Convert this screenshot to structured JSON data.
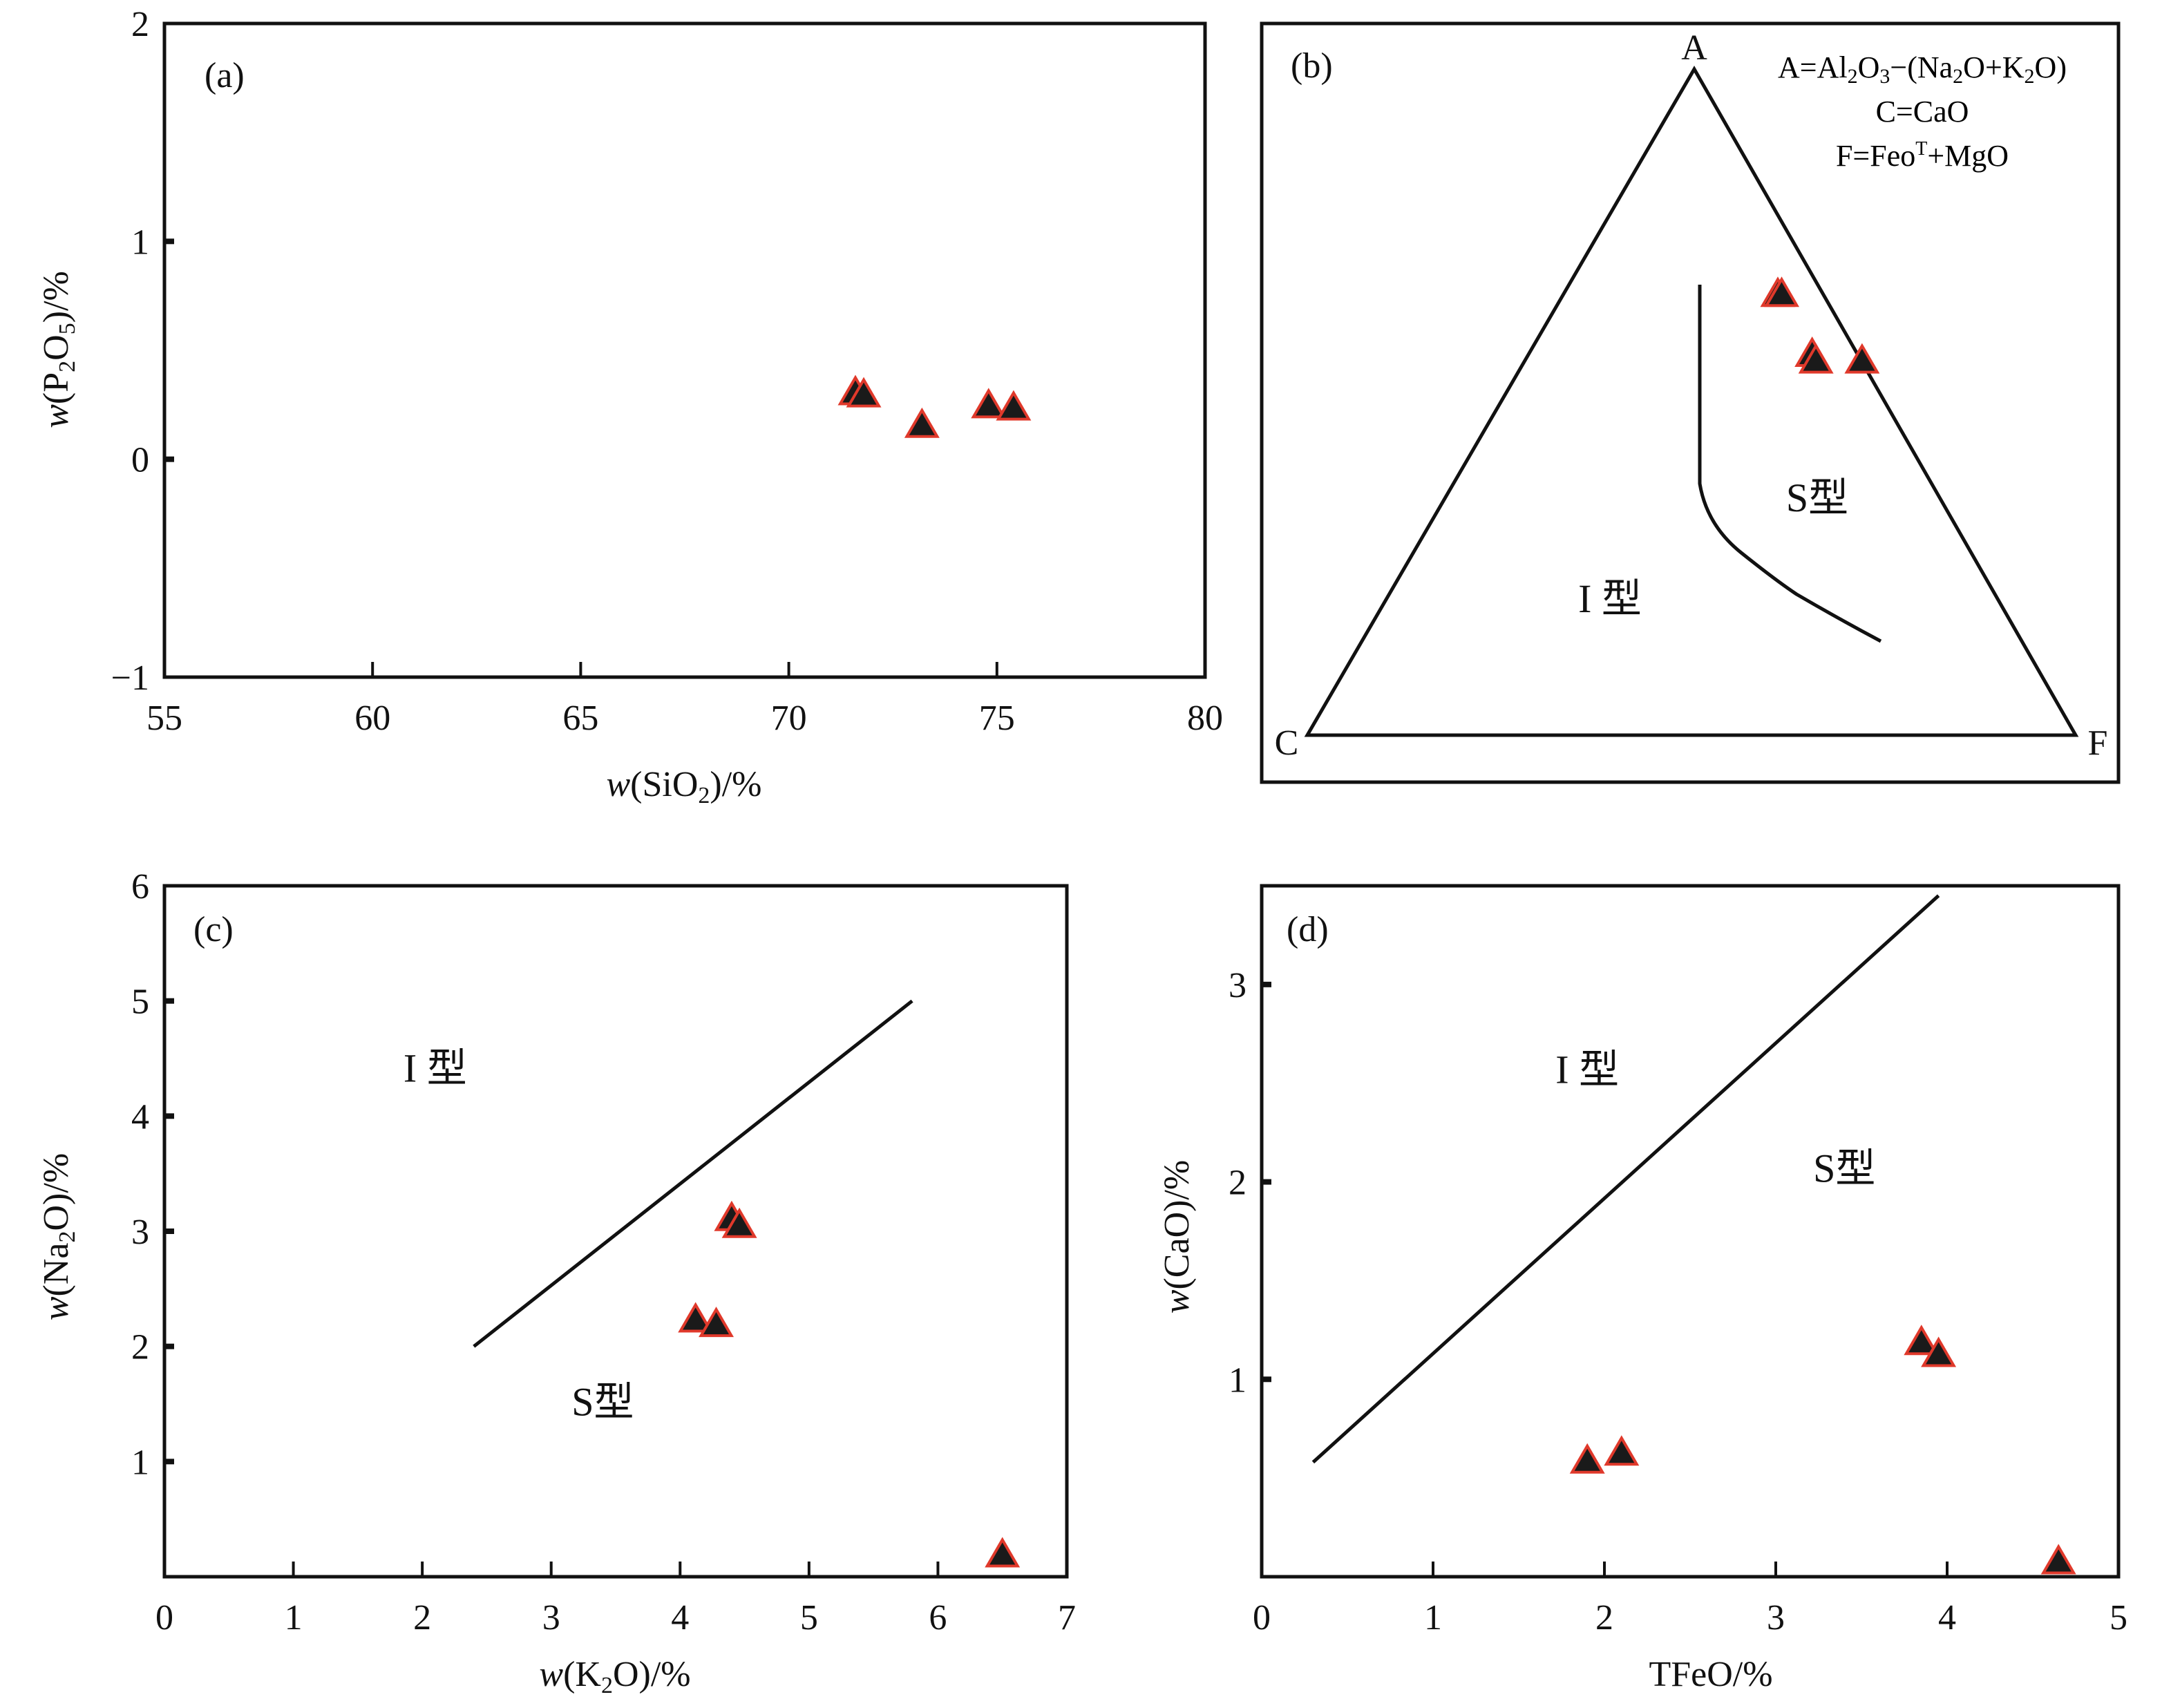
{
  "figure": {
    "marker_fill": "#1a1a1a",
    "marker_stroke": "#e0392b",
    "line_color": "#111111"
  },
  "chart_data": [
    {
      "id": "a",
      "type": "scatter",
      "panel_label": "(a)",
      "xlabel": "w(SiO2)/%",
      "xlabel_parts": {
        "italic": "w",
        "pre": "(SiO",
        "sub": "2",
        "post": ")/%"
      },
      "ylabel": "w(P2O5)/%",
      "ylabel_parts": {
        "italic": "w",
        "pre": "(P",
        "sub1": "2",
        "mid": "O",
        "sub2": "5",
        "post": ")/%"
      },
      "xlim": [
        55,
        80
      ],
      "ylim": [
        -1,
        2
      ],
      "xticks": [
        55,
        60,
        65,
        70,
        75,
        80
      ],
      "xtick_labels": [
        "55",
        "60",
        "65",
        "70",
        "75",
        "80"
      ],
      "yticks": [
        -1,
        0,
        1,
        2
      ],
      "ytick_labels": [
        "−1",
        "0",
        "1",
        "2"
      ],
      "points": [
        {
          "x": 71.6,
          "y": 0.3
        },
        {
          "x": 71.8,
          "y": 0.29
        },
        {
          "x": 73.2,
          "y": 0.15
        },
        {
          "x": 74.8,
          "y": 0.24
        },
        {
          "x": 75.4,
          "y": 0.23
        }
      ],
      "grid": false
    },
    {
      "id": "b",
      "type": "scatter",
      "subtype": "ternary",
      "panel_label": "(b)",
      "vertices": {
        "top": "A",
        "left": "C",
        "right": "F"
      },
      "legend_lines": [
        "A=Al2O3−(Na2O+K2O)",
        "C=CaO",
        "F=FeoT+MgO"
      ],
      "regions": [
        "I 型",
        "S型"
      ],
      "boundary_note": "curved I/S boundary line",
      "points_ternary": [
        {
          "A": 0.66,
          "C": 0.06,
          "F": 0.28
        },
        {
          "A": 0.66,
          "C": 0.055,
          "F": 0.285
        },
        {
          "A": 0.57,
          "C": 0.06,
          "F": 0.37
        },
        {
          "A": 0.56,
          "C": 0.06,
          "F": 0.38
        },
        {
          "A": 0.56,
          "C": 0.0,
          "F": 0.44
        }
      ],
      "boundary_ternary": [
        {
          "A": 0.69,
          "C": 0.18,
          "F": 0.13
        },
        {
          "A": 0.38,
          "C": 0.33,
          "F": 0.29
        },
        {
          "A": 0.33,
          "C": 0.35,
          "F": 0.32
        },
        {
          "A": 0.24,
          "C": 0.37,
          "F": 0.39
        },
        {
          "A": 0.14,
          "C": 0.37,
          "F": 0.49
        },
        {
          "A": 0.07,
          "C": 0.34,
          "F": 0.59
        }
      ]
    },
    {
      "id": "c",
      "type": "scatter",
      "panel_label": "(c)",
      "xlabel": "w(K2O)/%",
      "xlabel_parts": {
        "italic": "w",
        "pre": "(K",
        "sub": "2",
        "post": "O)/%"
      },
      "ylabel": "w(Na2O)/%",
      "ylabel_parts": {
        "italic": "w",
        "pre": "(Na",
        "sub": "2",
        "post": "O)/%"
      },
      "xlim": [
        0,
        7
      ],
      "ylim": [
        0,
        6
      ],
      "xticks": [
        0,
        1,
        2,
        3,
        4,
        5,
        6,
        7
      ],
      "xtick_labels": [
        "0",
        "1",
        "2",
        "3",
        "4",
        "5",
        "6",
        "7"
      ],
      "yticks": [
        1,
        2,
        3,
        4,
        5,
        6
      ],
      "ytick_labels": [
        "1",
        "2",
        "3",
        "4",
        "5",
        "6"
      ],
      "regions": [
        {
          "label": "I 型",
          "x": 2.1,
          "y": 4.3
        },
        {
          "label": "S型",
          "x": 3.4,
          "y": 1.4
        }
      ],
      "boundary": [
        {
          "x": 2.4,
          "y": 2.0
        },
        {
          "x": 5.8,
          "y": 5.0
        }
      ],
      "points": [
        {
          "x": 4.4,
          "y": 3.1
        },
        {
          "x": 4.46,
          "y": 3.04
        },
        {
          "x": 4.12,
          "y": 2.22
        },
        {
          "x": 4.28,
          "y": 2.18
        },
        {
          "x": 6.5,
          "y": 0.18
        }
      ],
      "grid": false
    },
    {
      "id": "d",
      "type": "scatter",
      "panel_label": "(d)",
      "xlabel": "TFeO/%",
      "ylabel": "w(CaO)/%",
      "ylabel_parts": {
        "italic": "w",
        "pre": "(CaO)/%"
      },
      "xlim": [
        0,
        5
      ],
      "ylim": [
        0,
        3.5
      ],
      "xticks": [
        0,
        1,
        2,
        3,
        4,
        5
      ],
      "xtick_labels": [
        "0",
        "1",
        "2",
        "3",
        "4",
        "5"
      ],
      "yticks": [
        1,
        2,
        3
      ],
      "ytick_labels": [
        "1",
        "2",
        "3"
      ],
      "regions": [
        {
          "label": "I 型",
          "x": 1.9,
          "y": 2.5
        },
        {
          "label": "S型",
          "x": 3.4,
          "y": 2.0
        }
      ],
      "boundary": [
        {
          "x": 0.3,
          "y": 0.58
        },
        {
          "x": 3.95,
          "y": 3.45
        }
      ],
      "points": [
        {
          "x": 1.9,
          "y": 0.58
        },
        {
          "x": 2.1,
          "y": 0.62
        },
        {
          "x": 3.85,
          "y": 1.18
        },
        {
          "x": 3.95,
          "y": 1.12
        },
        {
          "x": 4.65,
          "y": 0.07
        }
      ],
      "grid": false
    }
  ]
}
